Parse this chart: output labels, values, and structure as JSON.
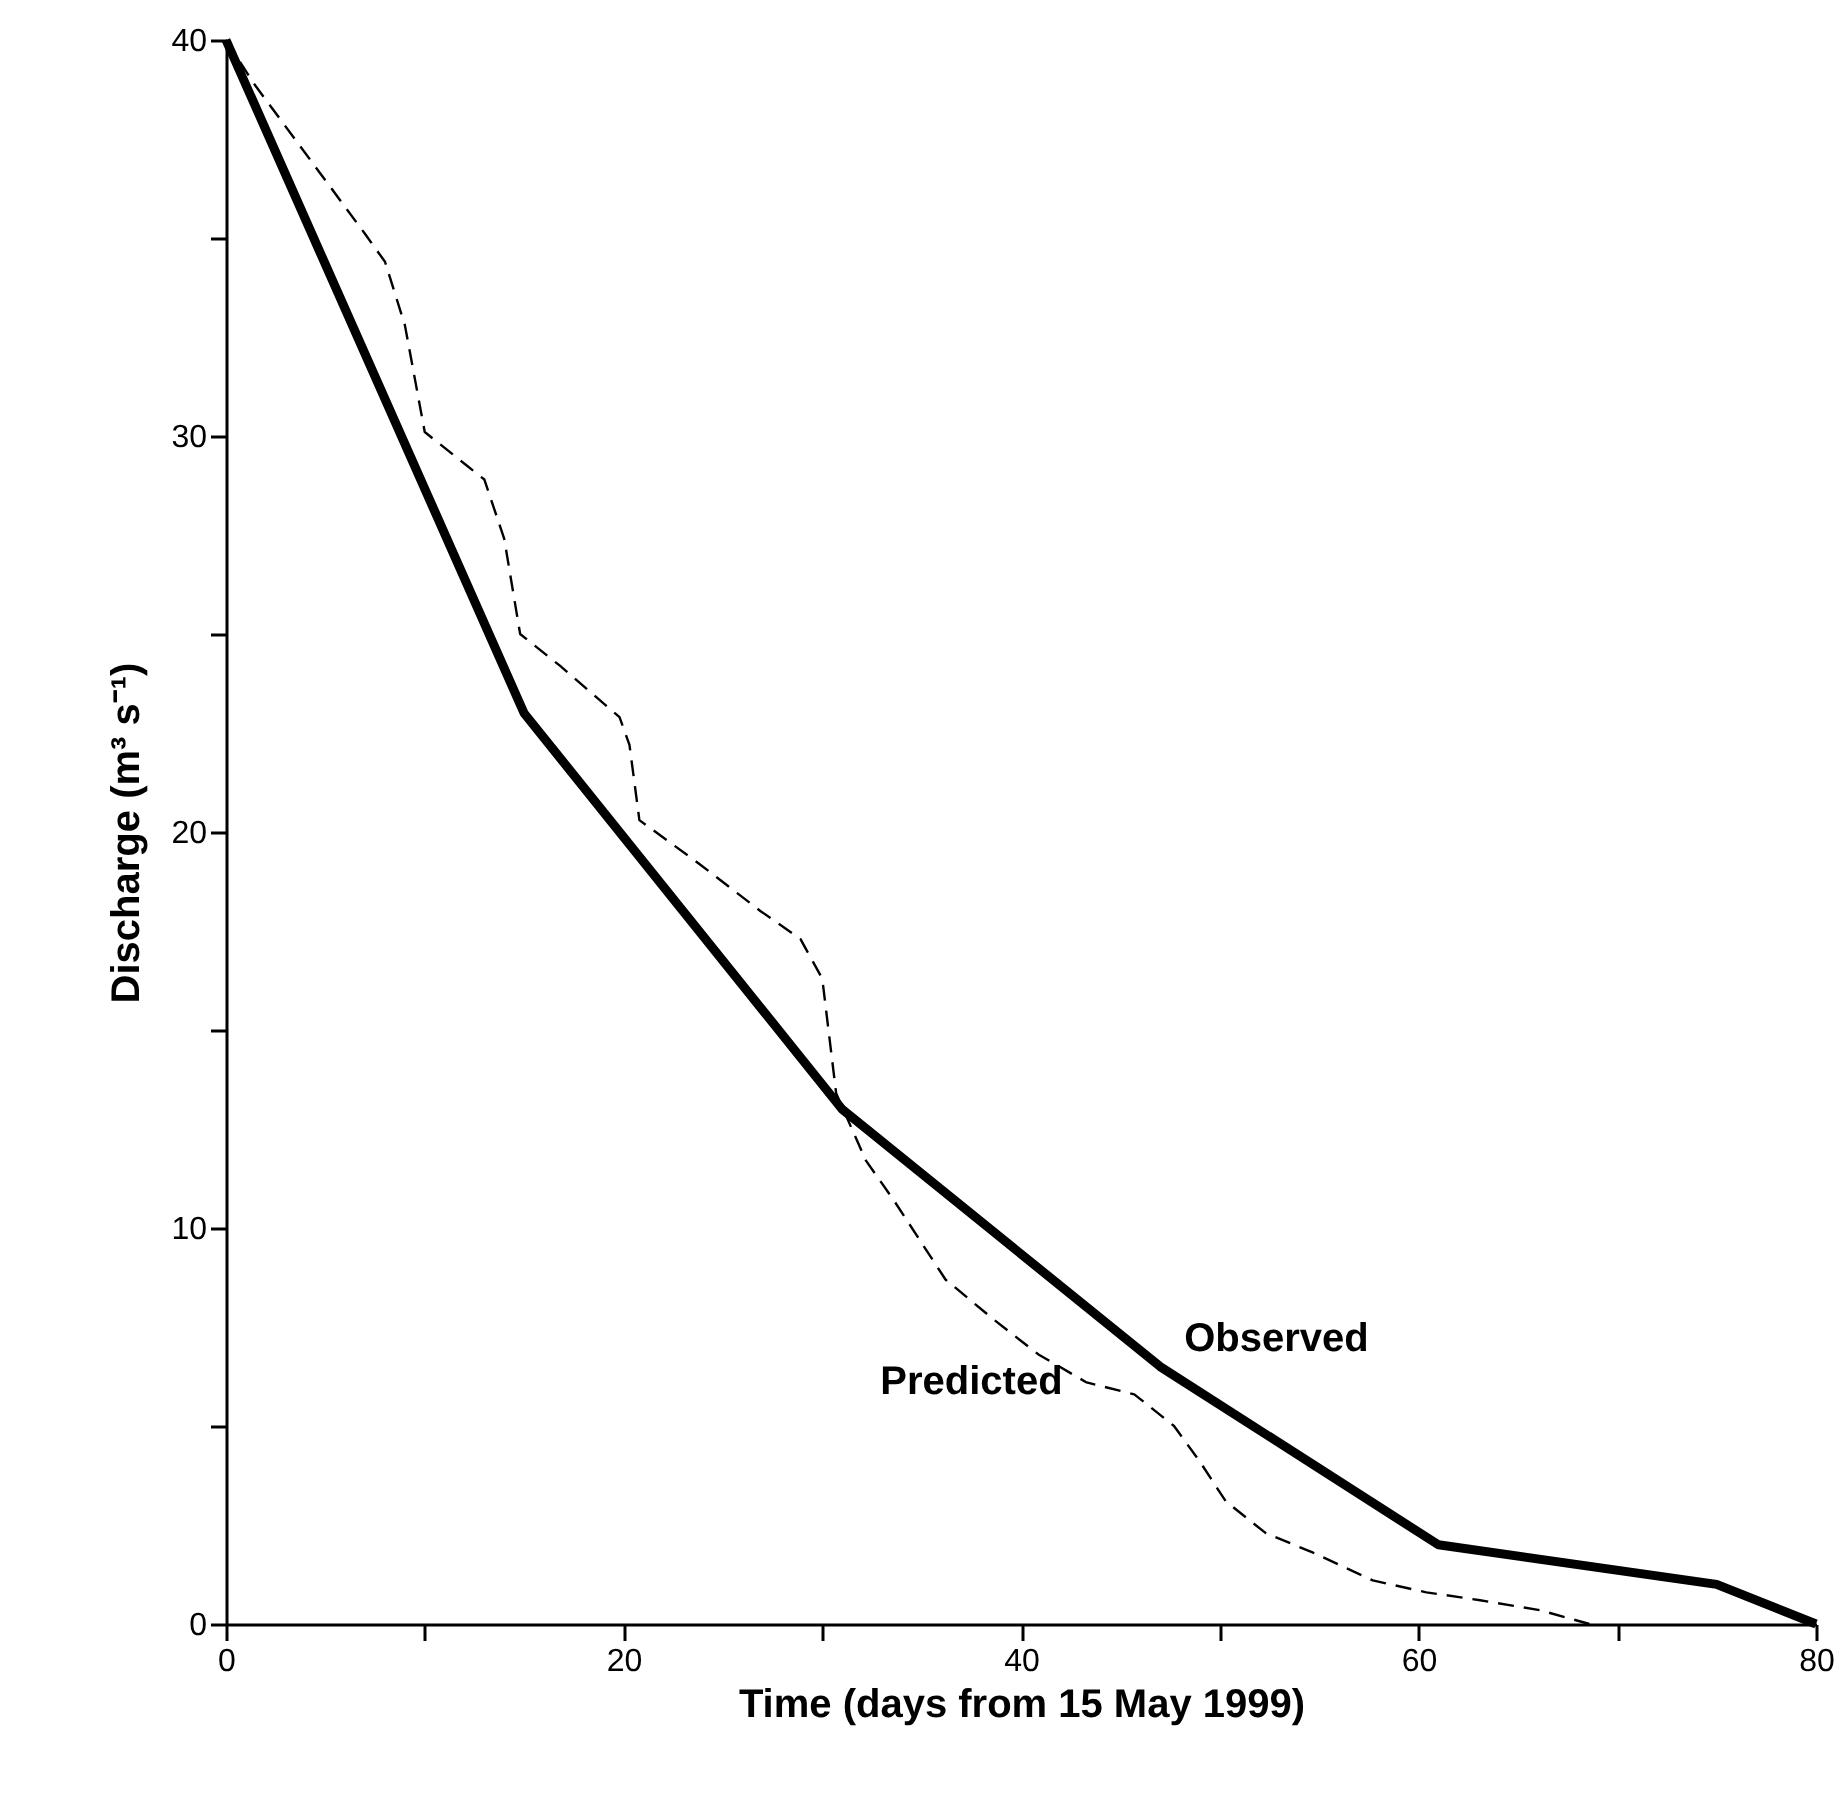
{
  "chart_data": {
    "type": "line",
    "xlabel": "Time (days from 15 May 1999)",
    "ylabel": "Discharge (m³ s⁻¹)",
    "xlim": [
      0,
      80
    ],
    "ylim": [
      0,
      40
    ],
    "xticks": [
      0,
      {
        "value": 10,
        "label": null
      },
      20,
      {
        "value": 30,
        "label": null
      },
      40,
      {
        "value": 50,
        "label": null
      },
      60,
      {
        "value": 70,
        "label": null
      },
      80
    ],
    "yticks": [
      0,
      {
        "value": 5,
        "label": null
      },
      10,
      {
        "value": 15,
        "label": null
      },
      20,
      {
        "value": 25,
        "label": null
      },
      30,
      {
        "value": 35,
        "label": null
      },
      40
    ],
    "grid": false,
    "legend": false,
    "marker": "none",
    "series": [
      {
        "name": "Observed",
        "color": "#000000",
        "line_style": "solid",
        "x": [
          0,
          15,
          31,
          47,
          61,
          75,
          80
        ],
        "values": [
          40,
          23,
          13,
          6.5,
          2,
          1,
          0
        ]
      },
      {
        "name": "Predicted",
        "color": "#000000",
        "line_style": "dashed",
        "x": [
          0,
          1.4,
          7,
          8,
          9,
          10,
          12,
          13,
          14,
          14.8,
          16.8,
          19.8,
          20.3,
          20.8,
          23.8,
          26.9,
          28.9,
          30,
          30.7,
          32.2,
          33.6,
          36.2,
          38.6,
          40.9,
          43.3,
          45.7,
          47.7,
          49,
          50.3,
          52.3,
          54.7,
          57.7,
          60.4,
          63.1,
          66.1,
          68.6
        ],
        "values": [
          40,
          38.9,
          35.1,
          34.4,
          32.8,
          30.1,
          29.3,
          28.9,
          27.4,
          25,
          24.2,
          22.9,
          22.2,
          20.3,
          19.2,
          18,
          17.3,
          16.3,
          13.4,
          11.7,
          10.7,
          8.7,
          7.7,
          6.8,
          6.1,
          5.8,
          5.0,
          4.1,
          3.1,
          2.3,
          1.8,
          1.1,
          0.8,
          0.6,
          0.35,
          0
        ]
      }
    ]
  }
}
